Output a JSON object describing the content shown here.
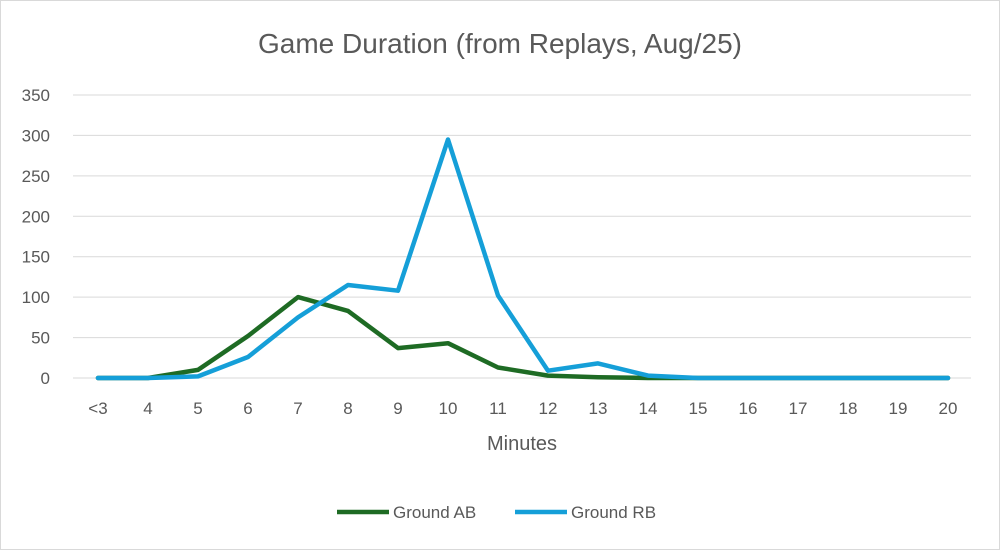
{
  "chart_data": {
    "type": "line",
    "title": "Game Duration (from Replays, Aug/25)",
    "xlabel": "Minutes",
    "ylabel": "",
    "ylim": [
      0,
      350
    ],
    "yticks": [
      0,
      50,
      100,
      150,
      200,
      250,
      300,
      350
    ],
    "grid": true,
    "legend": "bottom",
    "categories": [
      "<3",
      "4",
      "5",
      "6",
      "7",
      "8",
      "9",
      "10",
      "11",
      "12",
      "13",
      "14",
      "15",
      "16",
      "17",
      "18",
      "19",
      "20"
    ],
    "series": [
      {
        "name": "Ground AB",
        "color": "#1e6b24",
        "values": [
          0,
          0,
          10,
          52,
          100,
          83,
          37,
          43,
          13,
          3,
          1,
          0,
          0,
          0,
          0,
          0,
          0,
          0
        ]
      },
      {
        "name": "Ground RB",
        "color": "#159fd8",
        "values": [
          0,
          0,
          2,
          26,
          75,
          115,
          108,
          295,
          102,
          9,
          18,
          3,
          0,
          0,
          0,
          0,
          0,
          0
        ]
      }
    ]
  }
}
